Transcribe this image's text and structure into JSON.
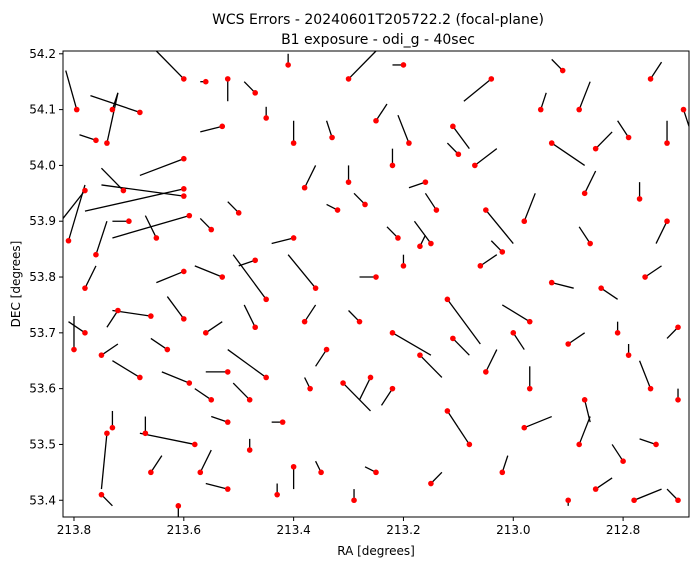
{
  "chart_data": {
    "type": "scatter",
    "title_line1": "WCS Errors - 20240601T205722.2 (focal-plane)",
    "title_line2": "B1 exposure - odi_g - 40sec",
    "xlabel": "RA [degrees]",
    "ylabel": "DEC [degrees]",
    "xlim": [
      213.82,
      212.68
    ],
    "ylim": [
      53.37,
      54.205
    ],
    "x_inverted": true,
    "xticks": [
      213.8,
      213.6,
      213.4,
      213.2,
      213.0,
      212.8
    ],
    "xtick_labels": [
      "213.8",
      "213.6",
      "213.4",
      "213.2",
      "213.0",
      "212.8"
    ],
    "yticks": [
      53.4,
      53.5,
      53.6,
      53.7,
      53.8,
      53.9,
      54.0,
      54.1,
      54.2
    ],
    "ytick_labels": [
      "53.4",
      "53.5",
      "53.6",
      "53.7",
      "53.8",
      "53.9",
      "54.0",
      "54.1",
      "54.2"
    ],
    "grid": false,
    "marker_color": "#ff0000",
    "vector_color": "#000000",
    "points": [
      {
        "ra": 213.6,
        "dec": 54.155,
        "dra": 0.05,
        "ddec": 0.05
      },
      {
        "ra": 213.795,
        "dec": 54.1,
        "dra": 0.02,
        "ddec": 0.07
      },
      {
        "ra": 213.73,
        "dec": 54.1,
        "dra": -0.01,
        "ddec": 0.03
      },
      {
        "ra": 213.68,
        "dec": 54.095,
        "dra": 0.09,
        "ddec": 0.03
      },
      {
        "ra": 213.76,
        "dec": 54.045,
        "dra": 0.03,
        "ddec": 0.01
      },
      {
        "ra": 213.74,
        "dec": 54.04,
        "dra": -0.02,
        "ddec": 0.09
      },
      {
        "ra": 213.6,
        "dec": 54.012,
        "dra": 0.08,
        "ddec": -0.03
      },
      {
        "ra": 213.71,
        "dec": 53.955,
        "dra": 0.04,
        "ddec": 0.04
      },
      {
        "ra": 213.6,
        "dec": 53.958,
        "dra": 0.18,
        "ddec": -0.04
      },
      {
        "ra": 213.6,
        "dec": 53.945,
        "dra": 0.15,
        "ddec": 0.02
      },
      {
        "ra": 213.59,
        "dec": 53.91,
        "dra": 0.14,
        "ddec": -0.04
      },
      {
        "ra": 213.78,
        "dec": 53.955,
        "dra": 0.06,
        "ddec": -0.05
      },
      {
        "ra": 213.81,
        "dec": 53.865,
        "dra": -0.03,
        "ddec": 0.1
      },
      {
        "ra": 213.76,
        "dec": 53.84,
        "dra": -0.02,
        "ddec": 0.06
      },
      {
        "ra": 213.65,
        "dec": 53.87,
        "dra": 0.02,
        "ddec": 0.04
      },
      {
        "ra": 213.55,
        "dec": 53.885,
        "dra": 0.02,
        "ddec": 0.02
      },
      {
        "ra": 213.6,
        "dec": 53.81,
        "dra": 0.05,
        "ddec": -0.02
      },
      {
        "ra": 213.78,
        "dec": 53.78,
        "dra": -0.02,
        "ddec": 0.04
      },
      {
        "ra": 213.72,
        "dec": 53.74,
        "dra": 0.02,
        "ddec": -0.03
      },
      {
        "ra": 213.66,
        "dec": 53.73,
        "dra": 0.07,
        "ddec": 0.01
      },
      {
        "ra": 213.6,
        "dec": 53.725,
        "dra": 0.03,
        "ddec": 0.04
      },
      {
        "ra": 213.78,
        "dec": 53.7,
        "dra": 0.03,
        "ddec": 0.02
      },
      {
        "ra": 213.8,
        "dec": 53.67,
        "dra": 0.0,
        "ddec": 0.06
      },
      {
        "ra": 213.75,
        "dec": 53.66,
        "dra": -0.03,
        "ddec": 0.02
      },
      {
        "ra": 213.68,
        "dec": 53.62,
        "dra": 0.05,
        "ddec": 0.03
      },
      {
        "ra": 213.59,
        "dec": 53.61,
        "dra": 0.05,
        "ddec": 0.02
      },
      {
        "ra": 213.73,
        "dec": 53.53,
        "dra": 0.0,
        "ddec": 0.03
      },
      {
        "ra": 213.74,
        "dec": 53.52,
        "dra": 0.01,
        "ddec": -0.1
      },
      {
        "ra": 213.67,
        "dec": 53.52,
        "dra": 0.0,
        "ddec": 0.03
      },
      {
        "ra": 213.58,
        "dec": 53.5,
        "dra": 0.1,
        "ddec": 0.02
      },
      {
        "ra": 213.66,
        "dec": 53.45,
        "dra": -0.02,
        "ddec": 0.03
      },
      {
        "ra": 213.57,
        "dec": 53.45,
        "dra": -0.02,
        "ddec": 0.04
      },
      {
        "ra": 213.75,
        "dec": 53.41,
        "dra": -0.02,
        "ddec": -0.02
      },
      {
        "ra": 213.61,
        "dec": 53.39,
        "dra": 0.0,
        "ddec": -0.03
      },
      {
        "ra": 213.52,
        "dec": 53.42,
        "dra": 0.04,
        "ddec": 0.01
      },
      {
        "ra": 213.52,
        "dec": 54.155,
        "dra": 0.0,
        "ddec": -0.04
      },
      {
        "ra": 213.53,
        "dec": 54.07,
        "dra": 0.04,
        "ddec": -0.01
      },
      {
        "ra": 213.47,
        "dec": 54.13,
        "dra": 0.02,
        "ddec": 0.02
      },
      {
        "ra": 213.45,
        "dec": 54.085,
        "dra": 0.0,
        "ddec": 0.02
      },
      {
        "ra": 213.4,
        "dec": 54.04,
        "dra": 0.0,
        "ddec": 0.04
      },
      {
        "ra": 213.33,
        "dec": 54.05,
        "dra": 0.01,
        "ddec": 0.03
      },
      {
        "ra": 213.3,
        "dec": 54.155,
        "dra": -0.05,
        "ddec": 0.05
      },
      {
        "ra": 213.38,
        "dec": 53.96,
        "dra": -0.02,
        "ddec": 0.04
      },
      {
        "ra": 213.3,
        "dec": 53.97,
        "dra": 0.0,
        "ddec": 0.03
      },
      {
        "ra": 213.32,
        "dec": 53.92,
        "dra": 0.02,
        "ddec": 0.01
      },
      {
        "ra": 213.5,
        "dec": 53.915,
        "dra": 0.02,
        "ddec": 0.02
      },
      {
        "ra": 213.4,
        "dec": 53.87,
        "dra": 0.04,
        "ddec": -0.01
      },
      {
        "ra": 213.47,
        "dec": 53.83,
        "dra": 0.03,
        "ddec": -0.01
      },
      {
        "ra": 213.53,
        "dec": 53.8,
        "dra": 0.05,
        "ddec": 0.02
      },
      {
        "ra": 213.56,
        "dec": 53.7,
        "dra": -0.03,
        "ddec": 0.02
      },
      {
        "ra": 213.47,
        "dec": 53.71,
        "dra": 0.02,
        "ddec": 0.04
      },
      {
        "ra": 213.38,
        "dec": 53.72,
        "dra": -0.02,
        "ddec": 0.03
      },
      {
        "ra": 213.45,
        "dec": 53.62,
        "dra": 0.07,
        "ddec": 0.05
      },
      {
        "ra": 213.37,
        "dec": 53.6,
        "dra": 0.01,
        "ddec": 0.02
      },
      {
        "ra": 213.48,
        "dec": 53.58,
        "dra": 0.03,
        "ddec": 0.03
      },
      {
        "ra": 213.52,
        "dec": 53.54,
        "dra": 0.03,
        "ddec": 0.01
      },
      {
        "ra": 213.42,
        "dec": 53.54,
        "dra": 0.02,
        "ddec": 0.0
      },
      {
        "ra": 213.48,
        "dec": 53.49,
        "dra": 0.0,
        "ddec": 0.02
      },
      {
        "ra": 213.4,
        "dec": 53.46,
        "dra": 0.0,
        "ddec": -0.04
      },
      {
        "ra": 213.35,
        "dec": 53.45,
        "dra": 0.01,
        "ddec": 0.02
      },
      {
        "ra": 213.43,
        "dec": 53.41,
        "dra": 0.0,
        "ddec": 0.02
      },
      {
        "ra": 213.29,
        "dec": 53.4,
        "dra": 0.0,
        "ddec": 0.02
      },
      {
        "ra": 213.25,
        "dec": 53.45,
        "dra": 0.02,
        "ddec": 0.01
      },
      {
        "ra": 213.31,
        "dec": 53.61,
        "dra": -0.05,
        "ddec": -0.05
      },
      {
        "ra": 213.26,
        "dec": 53.62,
        "dra": 0.02,
        "ddec": -0.04
      },
      {
        "ra": 213.22,
        "dec": 53.6,
        "dra": 0.02,
        "ddec": -0.03
      },
      {
        "ra": 213.28,
        "dec": 53.72,
        "dra": 0.02,
        "ddec": 0.02
      },
      {
        "ra": 213.25,
        "dec": 53.8,
        "dra": 0.03,
        "ddec": 0.0
      },
      {
        "ra": 213.2,
        "dec": 53.82,
        "dra": 0.0,
        "ddec": 0.02
      },
      {
        "ra": 213.21,
        "dec": 53.87,
        "dra": 0.02,
        "ddec": 0.02
      },
      {
        "ra": 213.17,
        "dec": 53.855,
        "dra": -0.01,
        "ddec": 0.02
      },
      {
        "ra": 213.27,
        "dec": 53.93,
        "dra": 0.02,
        "ddec": 0.02
      },
      {
        "ra": 213.22,
        "dec": 54.0,
        "dra": 0.0,
        "ddec": 0.03
      },
      {
        "ra": 213.16,
        "dec": 53.97,
        "dra": 0.03,
        "ddec": -0.01
      },
      {
        "ra": 213.25,
        "dec": 54.08,
        "dra": -0.02,
        "ddec": 0.03
      },
      {
        "ra": 213.19,
        "dec": 54.04,
        "dra": 0.02,
        "ddec": 0.05
      },
      {
        "ra": 213.11,
        "dec": 54.07,
        "dra": -0.03,
        "ddec": -0.04
      },
      {
        "ra": 213.07,
        "dec": 54.0,
        "dra": -0.04,
        "ddec": 0.03
      },
      {
        "ra": 213.04,
        "dec": 54.155,
        "dra": 0.05,
        "ddec": -0.04
      },
      {
        "ra": 212.95,
        "dec": 54.1,
        "dra": -0.01,
        "ddec": 0.03
      },
      {
        "ra": 212.88,
        "dec": 54.1,
        "dra": -0.02,
        "ddec": 0.05
      },
      {
        "ra": 212.93,
        "dec": 54.04,
        "dra": -0.06,
        "ddec": -0.04
      },
      {
        "ra": 212.85,
        "dec": 54.03,
        "dra": -0.03,
        "ddec": 0.03
      },
      {
        "ra": 212.79,
        "dec": 54.05,
        "dra": 0.02,
        "ddec": 0.03
      },
      {
        "ra": 212.75,
        "dec": 54.155,
        "dra": -0.02,
        "ddec": 0.03
      },
      {
        "ra": 212.69,
        "dec": 54.1,
        "dra": -0.02,
        "ddec": -0.03
      },
      {
        "ra": 212.72,
        "dec": 54.04,
        "dra": 0.0,
        "ddec": 0.04
      },
      {
        "ra": 213.05,
        "dec": 53.92,
        "dra": -0.05,
        "ddec": -0.06
      },
      {
        "ra": 212.98,
        "dec": 53.9,
        "dra": -0.02,
        "ddec": 0.05
      },
      {
        "ra": 212.87,
        "dec": 53.95,
        "dra": -0.02,
        "ddec": 0.04
      },
      {
        "ra": 212.77,
        "dec": 53.94,
        "dra": 0.0,
        "ddec": 0.03
      },
      {
        "ra": 212.72,
        "dec": 53.9,
        "dra": 0.02,
        "ddec": -0.04
      },
      {
        "ra": 213.02,
        "dec": 53.845,
        "dra": 0.02,
        "ddec": 0.02
      },
      {
        "ra": 213.06,
        "dec": 53.82,
        "dra": -0.03,
        "ddec": 0.02
      },
      {
        "ra": 212.93,
        "dec": 53.79,
        "dra": -0.04,
        "ddec": -0.01
      },
      {
        "ra": 212.84,
        "dec": 53.78,
        "dra": -0.03,
        "ddec": -0.02
      },
      {
        "ra": 212.76,
        "dec": 53.8,
        "dra": -0.03,
        "ddec": 0.02
      },
      {
        "ra": 213.12,
        "dec": 53.76,
        "dra": -0.06,
        "ddec": -0.08
      },
      {
        "ra": 212.97,
        "dec": 53.72,
        "dra": 0.05,
        "ddec": 0.03
      },
      {
        "ra": 213.0,
        "dec": 53.7,
        "dra": -0.02,
        "ddec": -0.03
      },
      {
        "ra": 212.9,
        "dec": 53.68,
        "dra": -0.03,
        "ddec": 0.02
      },
      {
        "ra": 212.81,
        "dec": 53.7,
        "dra": 0.0,
        "ddec": 0.02
      },
      {
        "ra": 212.7,
        "dec": 53.71,
        "dra": 0.02,
        "ddec": -0.02
      },
      {
        "ra": 213.17,
        "dec": 53.66,
        "dra": -0.04,
        "ddec": -0.04
      },
      {
        "ra": 213.05,
        "dec": 53.63,
        "dra": -0.02,
        "ddec": 0.04
      },
      {
        "ra": 212.97,
        "dec": 53.6,
        "dra": 0.0,
        "ddec": 0.04
      },
      {
        "ra": 212.87,
        "dec": 53.58,
        "dra": -0.01,
        "ddec": -0.04
      },
      {
        "ra": 212.75,
        "dec": 53.6,
        "dra": 0.02,
        "ddec": 0.05
      },
      {
        "ra": 212.7,
        "dec": 53.58,
        "dra": 0.0,
        "ddec": 0.02
      },
      {
        "ra": 213.12,
        "dec": 53.56,
        "dra": -0.02,
        "ddec": -0.03
      },
      {
        "ra": 213.08,
        "dec": 53.5,
        "dra": 0.02,
        "ddec": 0.03
      },
      {
        "ra": 212.98,
        "dec": 53.53,
        "dra": -0.05,
        "ddec": 0.02
      },
      {
        "ra": 212.88,
        "dec": 53.5,
        "dra": -0.02,
        "ddec": 0.05
      },
      {
        "ra": 212.8,
        "dec": 53.47,
        "dra": 0.02,
        "ddec": 0.03
      },
      {
        "ra": 212.74,
        "dec": 53.5,
        "dra": 0.03,
        "ddec": 0.01
      },
      {
        "ra": 212.85,
        "dec": 53.42,
        "dra": -0.03,
        "ddec": 0.02
      },
      {
        "ra": 212.78,
        "dec": 53.4,
        "dra": -0.05,
        "ddec": 0.02
      },
      {
        "ra": 212.7,
        "dec": 53.4,
        "dra": 0.02,
        "ddec": 0.02
      },
      {
        "ra": 212.9,
        "dec": 53.4,
        "dra": 0.0,
        "ddec": -0.01
      },
      {
        "ra": 213.15,
        "dec": 53.43,
        "dra": -0.02,
        "ddec": 0.02
      },
      {
        "ra": 213.02,
        "dec": 53.45,
        "dra": -0.01,
        "ddec": 0.03
      },
      {
        "ra": 213.22,
        "dec": 53.7,
        "dra": -0.07,
        "ddec": -0.04
      },
      {
        "ra": 213.34,
        "dec": 53.67,
        "dra": 0.02,
        "ddec": -0.03
      },
      {
        "ra": 213.52,
        "dec": 53.63,
        "dra": 0.04,
        "ddec": 0.0
      },
      {
        "ra": 213.45,
        "dec": 53.76,
        "dra": 0.06,
        "ddec": 0.08
      },
      {
        "ra": 213.36,
        "dec": 53.78,
        "dra": 0.05,
        "ddec": 0.06
      },
      {
        "ra": 213.11,
        "dec": 53.69,
        "dra": -0.03,
        "ddec": -0.03
      },
      {
        "ra": 213.14,
        "dec": 53.92,
        "dra": 0.02,
        "ddec": 0.03
      },
      {
        "ra": 213.1,
        "dec": 54.02,
        "dra": 0.02,
        "ddec": 0.02
      },
      {
        "ra": 212.86,
        "dec": 53.86,
        "dra": 0.02,
        "ddec": 0.03
      },
      {
        "ra": 212.91,
        "dec": 54.17,
        "dra": 0.02,
        "ddec": 0.02
      },
      {
        "ra": 213.2,
        "dec": 54.18,
        "dra": 0.02,
        "ddec": 0.0
      },
      {
        "ra": 213.41,
        "dec": 54.18,
        "dra": 0.0,
        "ddec": 0.02
      },
      {
        "ra": 213.56,
        "dec": 54.15,
        "dra": 0.01,
        "ddec": 0.0
      },
      {
        "ra": 213.7,
        "dec": 53.9,
        "dra": 0.03,
        "ddec": 0.0
      },
      {
        "ra": 213.63,
        "dec": 53.67,
        "dra": 0.03,
        "ddec": 0.02
      },
      {
        "ra": 213.55,
        "dec": 53.58,
        "dra": 0.03,
        "ddec": 0.02
      },
      {
        "ra": 212.79,
        "dec": 53.66,
        "dra": 0.0,
        "ddec": 0.02
      },
      {
        "ra": 213.15,
        "dec": 53.86,
        "dra": 0.03,
        "ddec": 0.04
      }
    ]
  }
}
